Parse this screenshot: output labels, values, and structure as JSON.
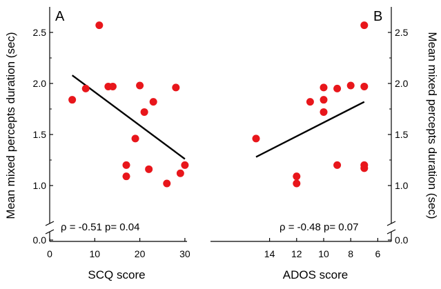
{
  "chart_data": [
    {
      "type": "scatter",
      "panel_label": "A",
      "xlabel": "SCQ score",
      "ylabel": "Mean mixed percepts duration (sec)",
      "xlim": [
        0,
        32
      ],
      "x_ticks": [
        "0",
        "10",
        "20",
        "30"
      ],
      "x_tick_values": [
        0,
        10,
        20,
        30
      ],
      "y_ticks": [
        "0.0",
        "1.0",
        "1.5",
        "2.0",
        "2.5"
      ],
      "y_tick_values": [
        0.0,
        1.0,
        1.5,
        2.0,
        2.5
      ],
      "y_axis_break": true,
      "points": [
        {
          "x": 5,
          "y": 1.84
        },
        {
          "x": 8,
          "y": 1.95
        },
        {
          "x": 11,
          "y": 2.57
        },
        {
          "x": 13,
          "y": 1.97
        },
        {
          "x": 14,
          "y": 1.97
        },
        {
          "x": 17,
          "y": 1.2
        },
        {
          "x": 17,
          "y": 1.09
        },
        {
          "x": 19,
          "y": 1.46
        },
        {
          "x": 20,
          "y": 1.98
        },
        {
          "x": 21,
          "y": 1.72
        },
        {
          "x": 22,
          "y": 1.16
        },
        {
          "x": 23,
          "y": 1.82
        },
        {
          "x": 26,
          "y": 1.02
        },
        {
          "x": 28,
          "y": 1.96
        },
        {
          "x": 29,
          "y": 1.12
        },
        {
          "x": 30,
          "y": 1.2
        }
      ],
      "fit_line": {
        "x": [
          5,
          30
        ],
        "y": [
          2.08,
          1.26
        ]
      },
      "stat_text": "ρ = -0.51   p= 0.04",
      "marker_color": "#e8161b"
    },
    {
      "type": "scatter",
      "panel_label": "B",
      "xlabel": "ADOS score",
      "ylabel": "Mean mixed percepts duration (sec)",
      "xlim": [
        16,
        6
      ],
      "x_reversed": true,
      "x_ticks": [
        "14",
        "12",
        "10",
        "8",
        "6"
      ],
      "x_tick_values": [
        14,
        12,
        10,
        8,
        6
      ],
      "y_ticks": [
        "0.0",
        "1.0",
        "1.5",
        "2.0",
        "2.5"
      ],
      "y_tick_values": [
        0.0,
        1.0,
        1.5,
        2.0,
        2.5
      ],
      "y_axis_break": true,
      "points": [
        {
          "x": 15,
          "y": 1.46
        },
        {
          "x": 12,
          "y": 1.09
        },
        {
          "x": 12,
          "y": 1.02
        },
        {
          "x": 11,
          "y": 1.82
        },
        {
          "x": 10,
          "y": 1.96
        },
        {
          "x": 10,
          "y": 1.84
        },
        {
          "x": 10,
          "y": 1.72
        },
        {
          "x": 9,
          "y": 1.95
        },
        {
          "x": 9,
          "y": 1.2
        },
        {
          "x": 8,
          "y": 1.98
        },
        {
          "x": 7,
          "y": 2.57
        },
        {
          "x": 7,
          "y": 1.97
        },
        {
          "x": 7,
          "y": 1.2
        },
        {
          "x": 7,
          "y": 1.17
        }
      ],
      "fit_line": {
        "x": [
          15,
          7
        ],
        "y": [
          1.28,
          1.82
        ]
      },
      "stat_text": "ρ = -0.48   p= 0.07",
      "marker_color": "#e8161b"
    }
  ]
}
